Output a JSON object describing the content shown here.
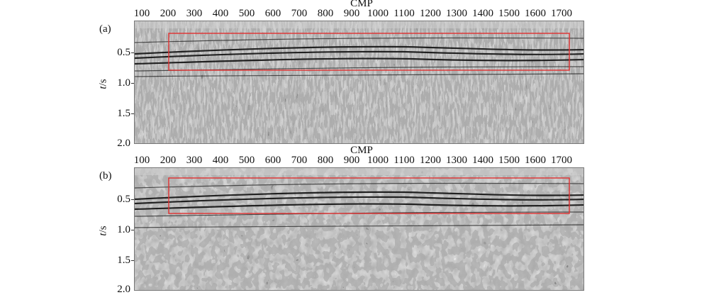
{
  "figure": {
    "x_axis_label": "CMP",
    "x_ticks": [
      "100",
      "200",
      "300",
      "400",
      "500",
      "600",
      "700",
      "800",
      "900",
      "1000",
      "1100",
      "1200",
      "1300",
      "1400",
      "1500",
      "1600",
      "1700"
    ],
    "y_axis_label_var": "t",
    "y_axis_label_unit": "/s",
    "y_ticks": [
      "0.5",
      "1.0",
      "1.5",
      "2.0"
    ],
    "highlight_color": "#e03030"
  },
  "panels": [
    {
      "letter": "(a)"
    },
    {
      "letter": "(b)"
    }
  ]
}
